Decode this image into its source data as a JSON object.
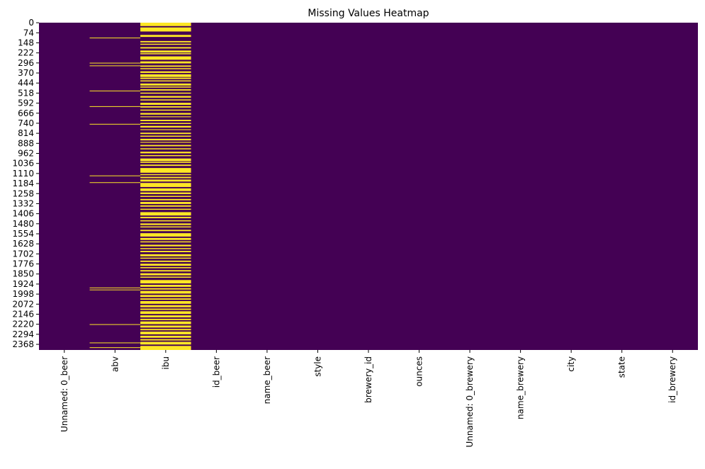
{
  "chart_data": {
    "type": "heatmap",
    "title": "Missing Values Heatmap",
    "xlabel": "",
    "ylabel": "",
    "columns": [
      "Unnamed: 0_beer",
      "abv",
      "ibu",
      "id_beer",
      "name_beer",
      "style",
      "brewery_id",
      "ounces",
      "Unnamed: 0_brewery",
      "name_brewery",
      "city",
      "state",
      "id_brewery"
    ],
    "y_ticks": [
      0,
      74,
      148,
      222,
      296,
      370,
      444,
      518,
      592,
      666,
      740,
      814,
      888,
      962,
      1036,
      1110,
      1184,
      1258,
      1332,
      1406,
      1480,
      1554,
      1628,
      1702,
      1776,
      1850,
      1924,
      1998,
      2072,
      2146,
      2220,
      2294,
      2368
    ],
    "row_count": 2410,
    "colorbar": false,
    "colors": {
      "present": "#440154",
      "missing": "#fde725"
    },
    "missing_rows": {
      "abv": [
        110,
        295,
        315,
        500,
        615,
        745,
        1125,
        1175,
        1950,
        1965,
        2220,
        2355,
        2390
      ],
      "ibu": [
        [
          0,
          25
        ],
        [
          35,
          30
        ],
        [
          90,
          15
        ],
        [
          135,
          10
        ],
        [
          155,
          8
        ],
        [
          180,
          10
        ],
        [
          205,
          15
        ],
        [
          225,
          8
        ],
        [
          248,
          25
        ],
        [
          285,
          15
        ],
        [
          315,
          10
        ],
        [
          335,
          8
        ],
        [
          358,
          12
        ],
        [
          380,
          20
        ],
        [
          405,
          10
        ],
        [
          425,
          8
        ],
        [
          448,
          15
        ],
        [
          470,
          8
        ],
        [
          490,
          10
        ],
        [
          515,
          8
        ],
        [
          540,
          12
        ],
        [
          565,
          8
        ],
        [
          590,
          15
        ],
        [
          615,
          10
        ],
        [
          640,
          8
        ],
        [
          665,
          12
        ],
        [
          690,
          6
        ],
        [
          715,
          10
        ],
        [
          738,
          8
        ],
        [
          760,
          12
        ],
        [
          785,
          6
        ],
        [
          810,
          10
        ],
        [
          832,
          8
        ],
        [
          855,
          12
        ],
        [
          878,
          6
        ],
        [
          900,
          10
        ],
        [
          925,
          8
        ],
        [
          950,
          12
        ],
        [
          975,
          8
        ],
        [
          1000,
          20
        ],
        [
          1025,
          8
        ],
        [
          1045,
          10
        ],
        [
          1070,
          35
        ],
        [
          1115,
          8
        ],
        [
          1135,
          10
        ],
        [
          1155,
          15
        ],
        [
          1180,
          30
        ],
        [
          1220,
          20
        ],
        [
          1250,
          12
        ],
        [
          1275,
          8
        ],
        [
          1298,
          10
        ],
        [
          1320,
          15
        ],
        [
          1345,
          10
        ],
        [
          1370,
          8
        ],
        [
          1395,
          25
        ],
        [
          1430,
          10
        ],
        [
          1455,
          8
        ],
        [
          1478,
          12
        ],
        [
          1500,
          8
        ],
        [
          1525,
          10
        ],
        [
          1550,
          25
        ],
        [
          1585,
          15
        ],
        [
          1610,
          8
        ],
        [
          1635,
          12
        ],
        [
          1660,
          8
        ],
        [
          1680,
          10
        ],
        [
          1705,
          15
        ],
        [
          1730,
          8
        ],
        [
          1752,
          10
        ],
        [
          1775,
          15
        ],
        [
          1800,
          8
        ],
        [
          1822,
          10
        ],
        [
          1845,
          15
        ],
        [
          1870,
          8
        ],
        [
          1895,
          25
        ],
        [
          1930,
          15
        ],
        [
          1955,
          10
        ],
        [
          1975,
          20
        ],
        [
          2005,
          15
        ],
        [
          2030,
          10
        ],
        [
          2050,
          20
        ],
        [
          2080,
          15
        ],
        [
          2105,
          10
        ],
        [
          2125,
          20
        ],
        [
          2155,
          15
        ],
        [
          2180,
          10
        ],
        [
          2200,
          20
        ],
        [
          2230,
          15
        ],
        [
          2255,
          10
        ],
        [
          2275,
          20
        ],
        [
          2305,
          15
        ],
        [
          2330,
          10
        ],
        [
          2350,
          20
        ],
        [
          2380,
          30
        ]
      ]
    }
  }
}
